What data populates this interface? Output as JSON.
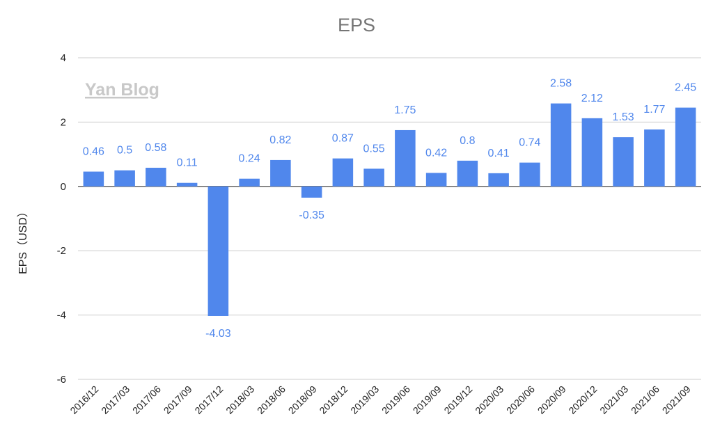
{
  "watermark": "Yan Blog",
  "colors": {
    "bar": "#5087ec",
    "label": "#5087ec",
    "grid": "#cccccc",
    "title": "#757575"
  },
  "chart_data": {
    "type": "bar",
    "title": "EPS",
    "xlabel": "",
    "ylabel": "EPS（USD）",
    "ylim": [
      -6,
      4
    ],
    "yticks": [
      4,
      2,
      0,
      -2,
      -4,
      -6
    ],
    "grid": true,
    "categories": [
      "2016/12",
      "2017/03",
      "2017/06",
      "2017/09",
      "2017/12",
      "2018/03",
      "2018/06",
      "2018/09",
      "2018/12",
      "2019/03",
      "2019/06",
      "2019/09",
      "2019/12",
      "2020/03",
      "2020/06",
      "2020/09",
      "2020/12",
      "2021/03",
      "2021/06",
      "2021/09"
    ],
    "values": [
      0.46,
      0.5,
      0.58,
      0.11,
      -4.03,
      0.24,
      0.82,
      -0.35,
      0.87,
      0.55,
      1.75,
      0.42,
      0.8,
      0.41,
      0.74,
      2.58,
      2.12,
      1.53,
      1.77,
      2.45
    ],
    "value_labels": [
      "0.46",
      "0.5",
      "0.58",
      "0.11",
      "-4.03",
      "0.24",
      "0.82",
      "-0.35",
      "0.87",
      "0.55",
      "1.75",
      "0.42",
      "0.8",
      "0.41",
      "0.74",
      "2.58",
      "2.12",
      "1.53",
      "1.77",
      "2.45"
    ]
  }
}
